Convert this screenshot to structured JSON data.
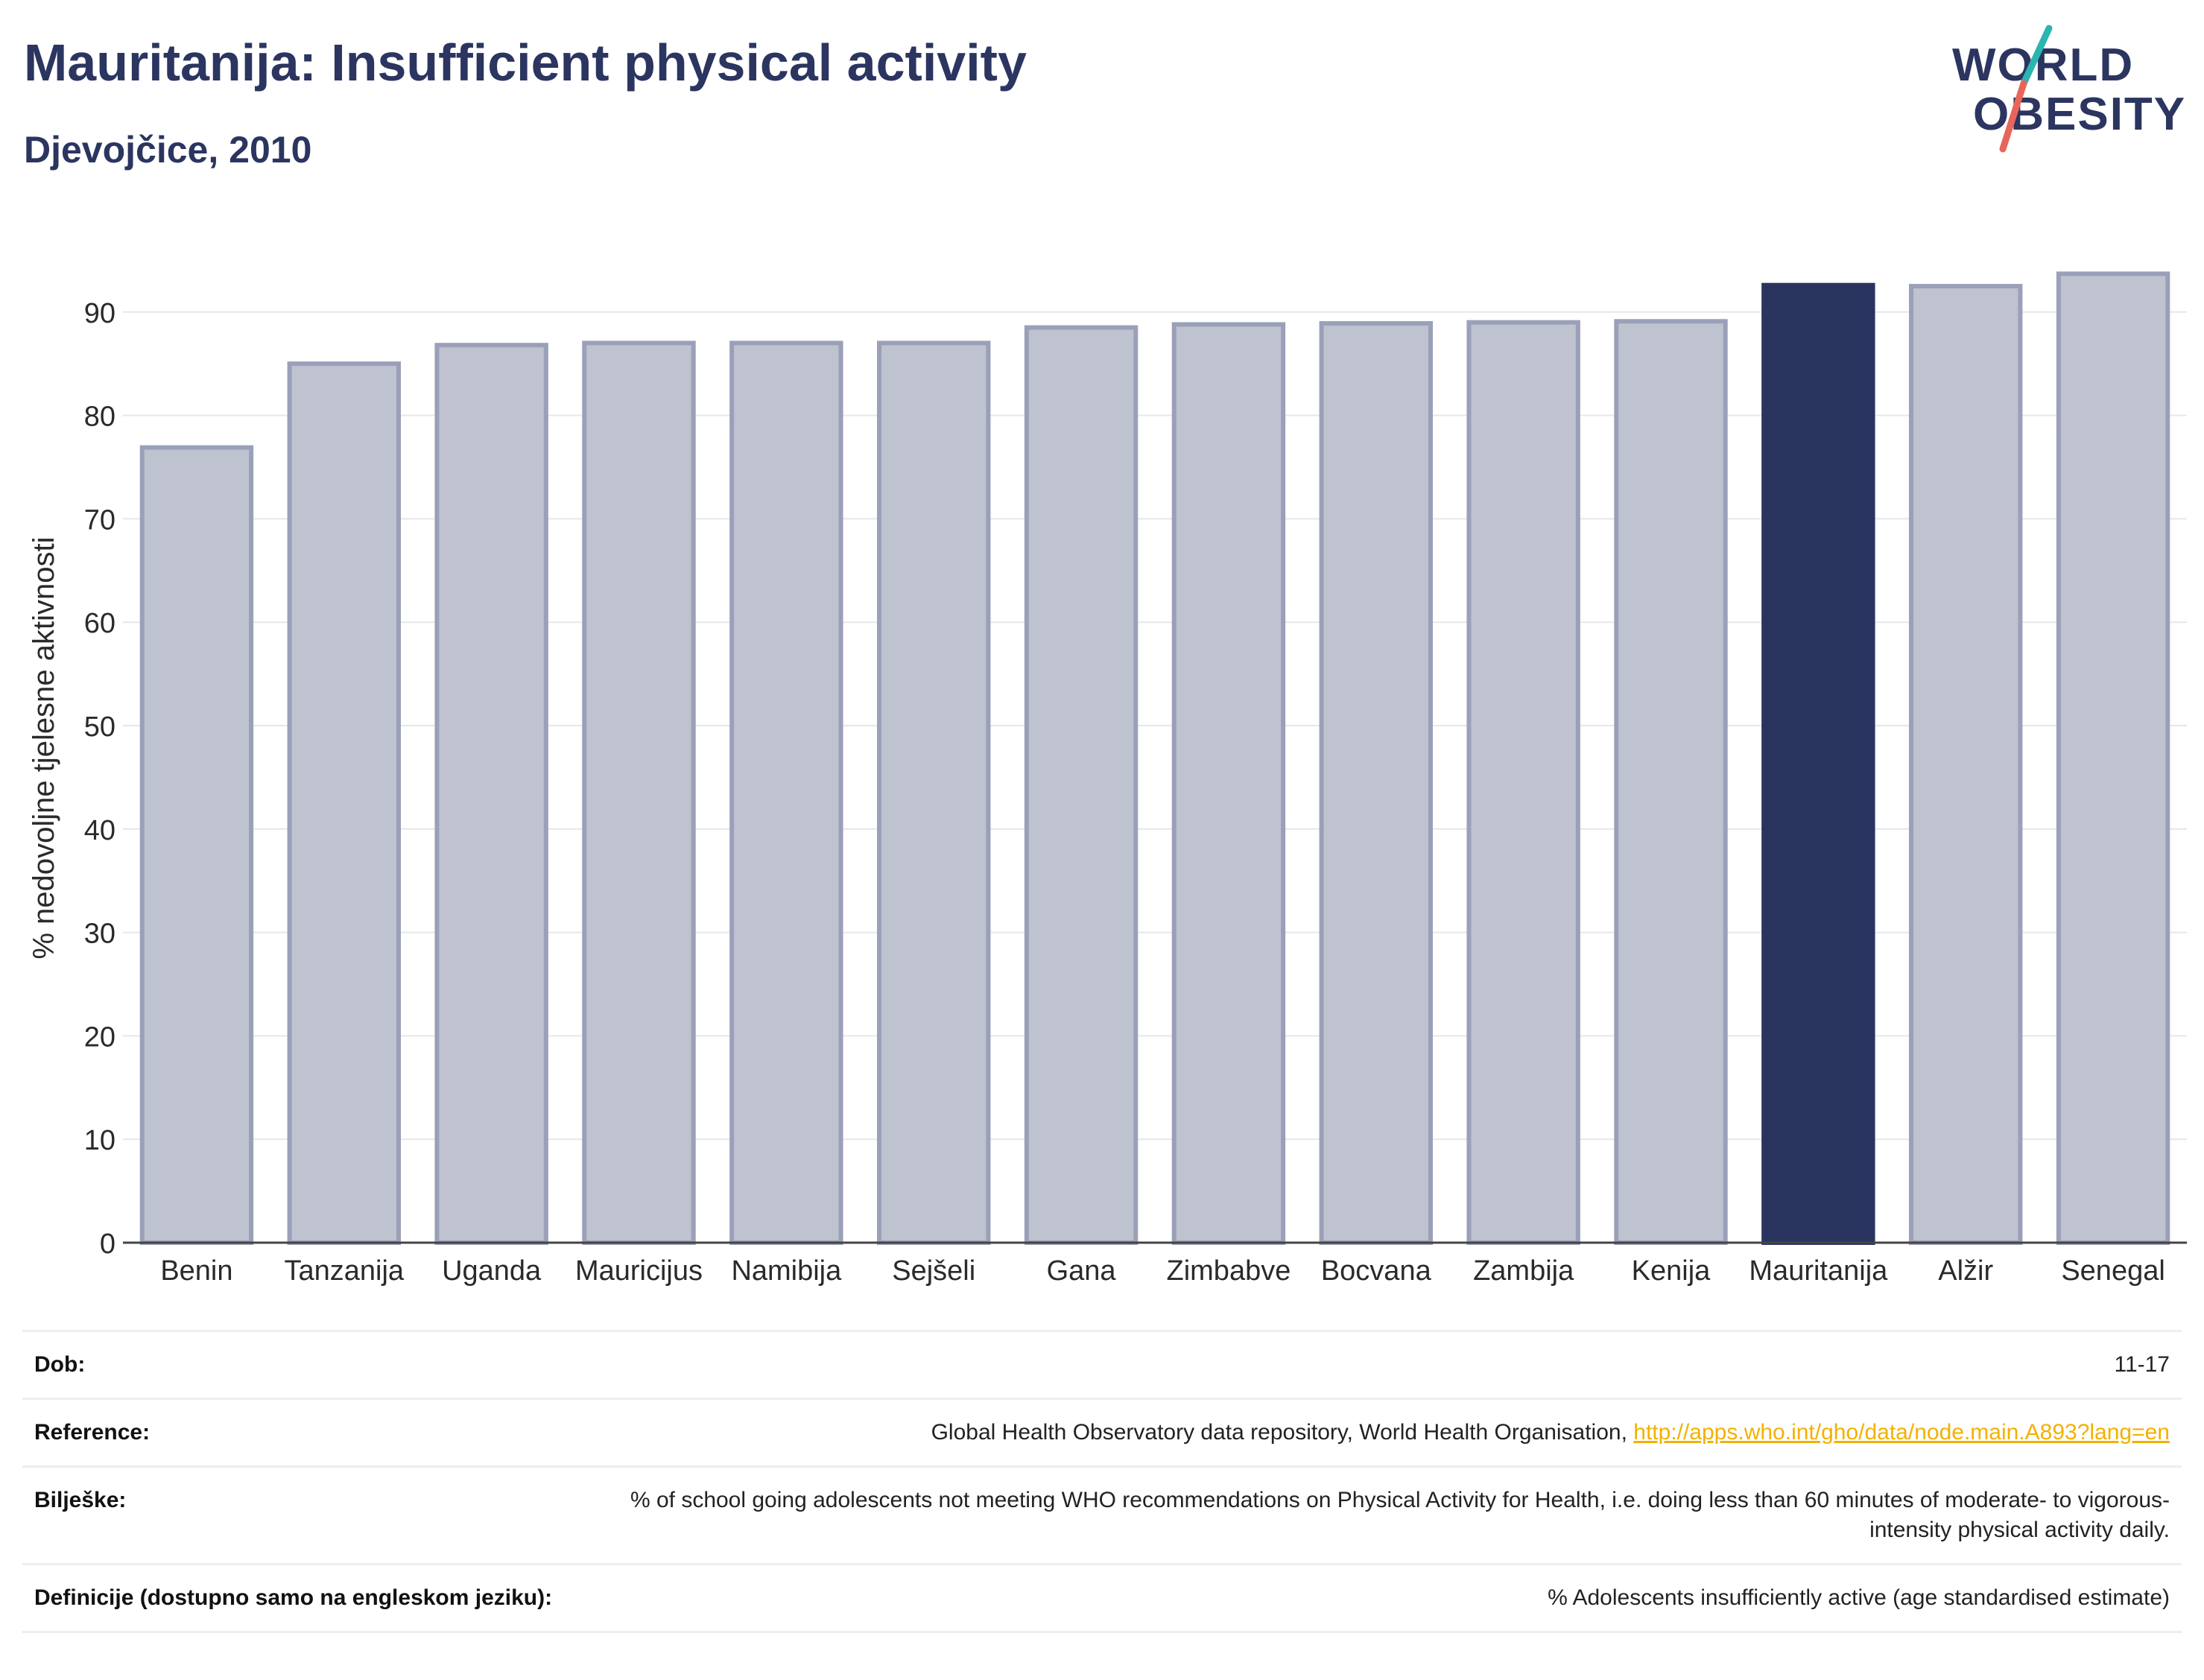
{
  "header": {
    "title": "Mauritanija: Insufficient physical activity",
    "subtitle": "Djevojčice, 2010"
  },
  "logo": {
    "line1": "WORLD",
    "line2": "OBESITY",
    "accent_colors": [
      "#2bb5b0",
      "#e8655a"
    ]
  },
  "colors": {
    "highlight_bar": "#29355f",
    "default_bar": "#bfc2cf",
    "default_bar_border": "#9aa0b8"
  },
  "chart_data": {
    "type": "bar",
    "categories": [
      "Benin",
      "Tanzanija",
      "Uganda",
      "Mauricijus",
      "Namibija",
      "Sejšeli",
      "Gana",
      "Zimbabve",
      "Bocvana",
      "Zambija",
      "Kenija",
      "Mauritanija",
      "Alžir",
      "Senegal"
    ],
    "values": [
      76.9,
      85.0,
      86.8,
      87.0,
      87.0,
      87.0,
      88.5,
      88.8,
      88.9,
      89.0,
      89.1,
      92.6,
      92.5,
      93.7
    ],
    "highlight": "Mauritanija",
    "title": "Mauritanija: Insufficient physical activity",
    "subtitle": "Djevojčice, 2010",
    "xlabel": "",
    "ylabel": "% nedovoljne tjelesne aktivnosti",
    "ylim": [
      0,
      100
    ],
    "yticks": [
      0,
      10,
      20,
      30,
      40,
      50,
      60,
      70,
      80,
      90
    ],
    "grid": true,
    "legend": "none"
  },
  "info": {
    "age_label": "Dob:",
    "age_value": "11-17",
    "reference_label": "Reference:",
    "reference_text": "Global Health Observatory data repository, World Health Organisation, ",
    "reference_link": "http://apps.who.int/gho/data/node.main.A893?lang=en",
    "notes_label": "Bilješke:",
    "notes_text": "% of school going adolescents not meeting WHO recommendations on Physical Activity for Health, i.e. doing less than 60 minutes of moderate- to vigorous-intensity physical activity daily.",
    "definitions_label": "Definicije (dostupno samo na engleskom jeziku):",
    "definitions_text": "% Adolescents insufficiently active (age standardised estimate)"
  }
}
